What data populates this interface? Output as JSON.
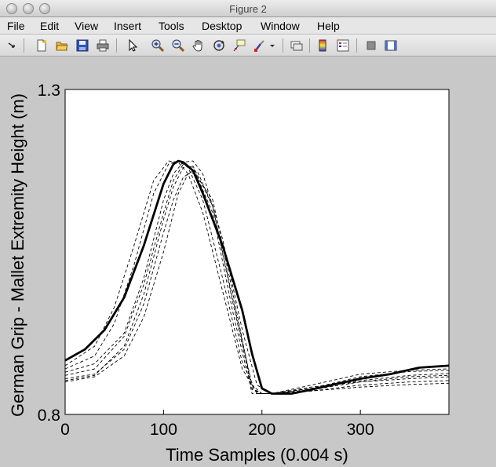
{
  "window": {
    "title": "Figure 2"
  },
  "menu": [
    "File",
    "Edit",
    "View",
    "Insert",
    "Tools",
    "Desktop",
    "Window",
    "Help"
  ],
  "toolbar": {
    "icons": [
      "arrow-icon",
      "new-figure-icon",
      "open-file-icon",
      "save-icon",
      "print-icon",
      "select-pointer-icon",
      "zoom-in-icon",
      "zoom-out-icon",
      "pan-hand-icon",
      "rotate-3d-icon",
      "data-cursor-icon",
      "brush-icon",
      "brush-dropdown-icon",
      "link-plot-icon",
      "colorbar-icon",
      "legend-icon",
      "hide-plot-tools-icon",
      "show-plot-tools-icon"
    ]
  },
  "chart_data": {
    "type": "line",
    "title": "",
    "xlabel": "Time Samples (0.004 s)",
    "ylabel": "German Grip - Mallet Extremity Height (m)",
    "xlim": [
      0,
      390
    ],
    "ylim": [
      0.8,
      1.3
    ],
    "xticks": [
      "0",
      "100",
      "200",
      "300"
    ],
    "yticks": [
      "0.8",
      "1.3"
    ],
    "grid": false,
    "series": [
      {
        "style": "bold",
        "x": [
          0,
          20,
          40,
          60,
          80,
          100,
          110,
          115,
          120,
          130,
          140,
          160,
          180,
          190,
          200,
          210,
          230,
          250,
          270,
          300,
          330,
          360,
          390
        ],
        "y": [
          0.883,
          0.9,
          0.93,
          0.98,
          1.06,
          1.155,
          1.185,
          1.19,
          1.188,
          1.175,
          1.14,
          1.06,
          0.96,
          0.893,
          0.84,
          0.832,
          0.832,
          0.838,
          0.845,
          0.855,
          0.862,
          0.872,
          0.875
        ]
      },
      {
        "style": "dashed",
        "x": [
          0,
          30,
          60,
          80,
          100,
          110,
          120,
          130,
          150,
          170,
          190,
          200,
          210,
          250,
          300,
          350,
          390
        ],
        "y": [
          0.86,
          0.87,
          0.92,
          1.0,
          1.11,
          1.16,
          1.185,
          1.18,
          1.11,
          0.96,
          0.832,
          0.832,
          0.832,
          0.84,
          0.858,
          0.866,
          0.868
        ]
      },
      {
        "style": "dashed",
        "x": [
          0,
          30,
          60,
          80,
          100,
          110,
          120,
          130,
          150,
          170,
          190,
          200,
          210,
          250,
          300,
          350,
          390
        ],
        "y": [
          0.855,
          0.862,
          0.9,
          0.97,
          1.08,
          1.13,
          1.165,
          1.175,
          1.13,
          0.99,
          0.84,
          0.832,
          0.832,
          0.842,
          0.85,
          0.855,
          0.858
        ]
      },
      {
        "style": "dashed",
        "x": [
          0,
          30,
          50,
          70,
          90,
          105,
          115,
          125,
          140,
          160,
          180,
          195,
          210,
          250,
          300,
          350,
          390
        ],
        "y": [
          0.87,
          0.89,
          0.94,
          1.03,
          1.14,
          1.185,
          1.19,
          1.18,
          1.13,
          1.01,
          0.88,
          0.832,
          0.832,
          0.838,
          0.85,
          0.858,
          0.86
        ]
      },
      {
        "style": "dashed",
        "x": [
          0,
          30,
          60,
          80,
          100,
          115,
          125,
          135,
          150,
          170,
          190,
          200,
          210,
          250,
          300,
          350,
          390
        ],
        "y": [
          0.85,
          0.858,
          0.89,
          0.95,
          1.05,
          1.14,
          1.17,
          1.172,
          1.12,
          0.98,
          0.845,
          0.832,
          0.832,
          0.836,
          0.845,
          0.85,
          0.852
        ]
      },
      {
        "style": "dashed",
        "x": [
          0,
          30,
          50,
          70,
          90,
          105,
          115,
          125,
          140,
          160,
          180,
          195,
          210,
          250,
          300,
          350,
          390
        ],
        "y": [
          0.875,
          0.905,
          0.965,
          1.06,
          1.16,
          1.19,
          1.188,
          1.17,
          1.11,
          0.99,
          0.87,
          0.832,
          0.832,
          0.845,
          0.862,
          0.868,
          0.87
        ]
      },
      {
        "style": "dashed",
        "x": [
          0,
          30,
          60,
          80,
          100,
          110,
          120,
          130,
          140,
          160,
          180,
          195,
          210,
          250,
          300,
          350,
          390
        ],
        "y": [
          0.865,
          0.878,
          0.925,
          1.01,
          1.13,
          1.17,
          1.188,
          1.19,
          1.17,
          1.07,
          0.93,
          0.845,
          0.832,
          0.84,
          0.852,
          0.86,
          0.863
        ]
      },
      {
        "style": "dashed",
        "x": [
          0,
          30,
          60,
          80,
          100,
          110,
          120,
          130,
          150,
          170,
          190,
          200,
          210,
          250,
          300,
          350,
          390
        ],
        "y": [
          0.852,
          0.86,
          0.905,
          0.985,
          1.1,
          1.15,
          1.18,
          1.182,
          1.12,
          0.975,
          0.838,
          0.832,
          0.832,
          0.836,
          0.842,
          0.846,
          0.848
        ]
      }
    ]
  }
}
